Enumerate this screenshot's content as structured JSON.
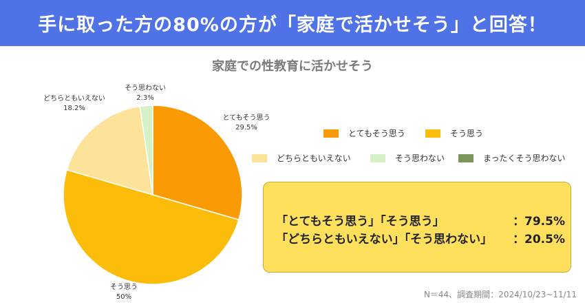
{
  "banner": {
    "title": "手に取った方の80%の方が「家庭で活かせそう」と回答！"
  },
  "footnote": "N＝44、調査期間：2024/10/23~11/11",
  "summary": {
    "line1_label": "「とてもそう思う」「そう思う」",
    "line1_value": "：79.5%",
    "line2_label": "「どちらともいえない」「そう思わない」",
    "line2_value": "：20.5%"
  },
  "chart_data": {
    "type": "pie",
    "title": "家庭での性教育に活かせそう",
    "slices": [
      {
        "label": "とてもそう思う",
        "value": 29.5,
        "display": "29.5%",
        "color": "#fa9b06"
      },
      {
        "label": "そう思う",
        "value": 50,
        "display": "50%",
        "color": "#fbbc0a"
      },
      {
        "label": "どちらともいえない",
        "value": 18.2,
        "display": "18.2%",
        "color": "#fde29a"
      },
      {
        "label": "そう思わない",
        "value": 2.3,
        "display": "2.3%",
        "color": "#d6f0c7"
      },
      {
        "label": "まったくそう思わない",
        "value": 0,
        "display": "",
        "color": "#7b955b"
      }
    ],
    "legend_position": "right"
  }
}
